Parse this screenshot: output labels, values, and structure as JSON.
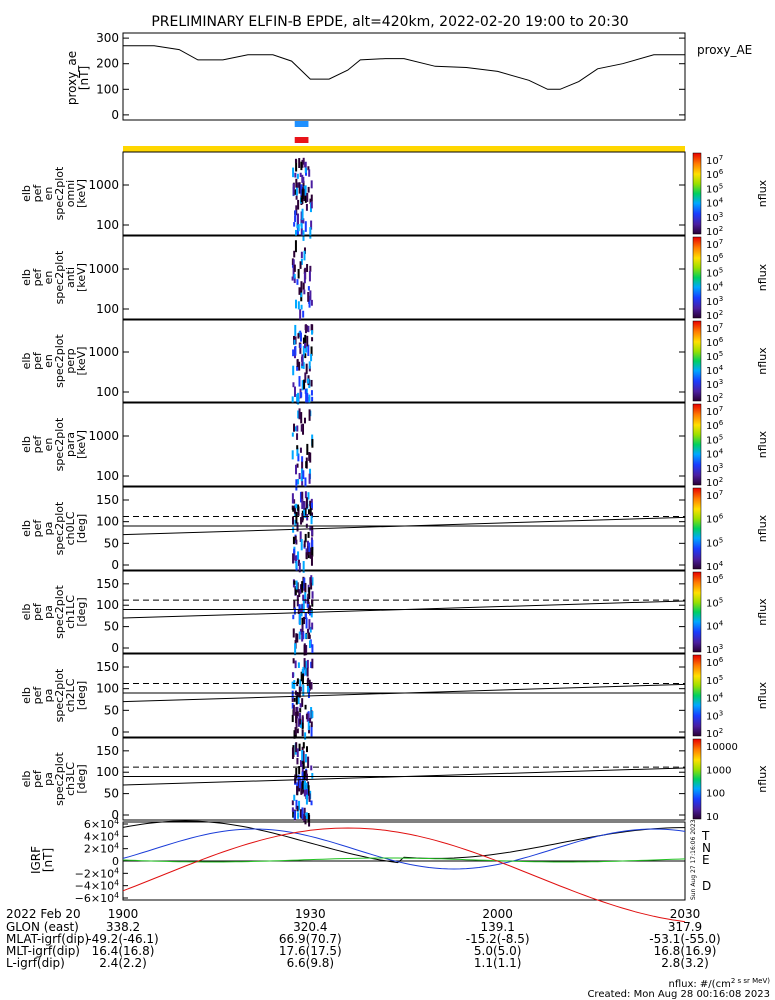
{
  "title": "PRELIMINARY ELFIN-B EPDE, alt=420km, 2022-02-20 19:00 to 20:30",
  "chart_data": [
    {
      "type": "line",
      "panel": "proxy_ae",
      "ylabel": [
        "proxy_ae",
        "[nT]"
      ],
      "right_label": "proxy_AE",
      "yticks": [
        0,
        100,
        200,
        300
      ],
      "ylim": [
        -20,
        320
      ],
      "x_minutes": [
        0,
        5,
        9,
        12,
        16,
        20,
        24,
        27,
        30,
        33,
        36,
        38,
        42,
        45,
        50,
        55,
        60,
        65,
        68,
        70,
        73,
        76,
        80,
        85,
        90
      ],
      "values": [
        270,
        270,
        255,
        215,
        215,
        235,
        235,
        210,
        140,
        140,
        175,
        215,
        220,
        220,
        190,
        185,
        170,
        135,
        100,
        100,
        130,
        180,
        200,
        235,
        235
      ],
      "colors": {
        "line": "#000000"
      }
    },
    {
      "type": "bar",
      "panel": "science-zone-indicators",
      "bars": [
        {
          "name": "blue",
          "x_minutes": [
            27.5,
            29.7
          ],
          "color": "#1e90ff"
        },
        {
          "name": "red",
          "x_minutes": [
            27.5,
            29.7
          ],
          "color": "#e8141a"
        },
        {
          "name": "yellow",
          "x_minutes": [
            0,
            90
          ],
          "color": "#ffd700"
        }
      ]
    },
    {
      "type": "heatmap",
      "panels": [
        {
          "id": "en-omni",
          "ylabel": [
            "elb",
            "pef",
            "en",
            "spec2plot",
            "omni",
            "[keV]"
          ],
          "yticks": [
            "100",
            "1000"
          ],
          "colorbar_ticks": [
            "10^7",
            "10^6",
            "10^5",
            "10^4",
            "10^3",
            "10^2"
          ],
          "colorbar_label": "nflux"
        },
        {
          "id": "en-anti",
          "ylabel": [
            "elb",
            "pef",
            "en",
            "spec2plot",
            "anti",
            "[keV]"
          ],
          "yticks": [
            "100",
            "1000"
          ],
          "colorbar_ticks": [
            "10^7",
            "10^6",
            "10^5",
            "10^4",
            "10^3",
            "10^2"
          ],
          "colorbar_label": "nflux"
        },
        {
          "id": "en-perp",
          "ylabel": [
            "elb",
            "pef",
            "en",
            "spec2plot",
            "perp",
            "[keV]"
          ],
          "yticks": [
            "100",
            "1000"
          ],
          "colorbar_ticks": [
            "10^7",
            "10^6",
            "10^5",
            "10^4",
            "10^3",
            "10^2"
          ],
          "colorbar_label": "nflux"
        },
        {
          "id": "en-para",
          "ylabel": [
            "elb",
            "pef",
            "en",
            "spec2plot",
            "para",
            "[keV]"
          ],
          "yticks": [
            "100",
            "1000"
          ],
          "colorbar_ticks": [
            "10^7",
            "10^6",
            "10^5",
            "10^4",
            "10^3",
            "10^2"
          ],
          "colorbar_label": "nflux"
        },
        {
          "id": "pa-ch0",
          "ylabel": [
            "elb",
            "pef",
            "pa",
            "spec2plot",
            "ch0LC",
            "[deg]"
          ],
          "yticks": [
            "0",
            "50",
            "100",
            "150"
          ],
          "colorbar_ticks": [
            "10^7",
            "10^6",
            "10^5",
            "10^4"
          ],
          "colorbar_label": "nflux"
        },
        {
          "id": "pa-ch1",
          "ylabel": [
            "elb",
            "pef",
            "pa",
            "spec2plot",
            "ch1LC",
            "[deg]"
          ],
          "yticks": [
            "0",
            "50",
            "100",
            "150"
          ],
          "colorbar_ticks": [
            "10^6",
            "10^5",
            "10^4",
            "10^3"
          ],
          "colorbar_label": "nflux"
        },
        {
          "id": "pa-ch2",
          "ylabel": [
            "elb",
            "pef",
            "pa",
            "spec2plot",
            "ch2LC",
            "[deg]"
          ],
          "yticks": [
            "0",
            "50",
            "100",
            "150"
          ],
          "colorbar_ticks": [
            "10^6",
            "10^5",
            "10^4",
            "10^3",
            "10^2"
          ],
          "colorbar_label": "nflux"
        },
        {
          "id": "pa-ch3",
          "ylabel": [
            "elb",
            "pef",
            "pa",
            "spec2plot",
            "ch3LC",
            "[deg]"
          ],
          "yticks": [
            "0",
            "50",
            "100",
            "150"
          ],
          "colorbar_ticks": [
            "10000",
            "1000",
            "100",
            "10"
          ],
          "colorbar_label": "nflux"
        }
      ]
    },
    {
      "type": "line",
      "panel": "igrf",
      "ylabel": [
        "IGRF",
        "[nT]"
      ],
      "yticks": [
        "6×10^4",
        "4×10^4",
        "2×10^4",
        "0",
        "−2×10^4",
        "−4×10^4",
        "−6×10^4"
      ],
      "series": [
        {
          "name": "T",
          "color": "#000000"
        },
        {
          "name": "N",
          "color": "#1a3cd8"
        },
        {
          "name": "E",
          "color": "#22c022"
        },
        {
          "name": "D",
          "color": "#e01010"
        }
      ]
    }
  ],
  "x_axis": {
    "ticks": [
      "1900",
      "1930",
      "2000",
      "2030"
    ]
  },
  "orbit_table": {
    "date": "2022 Feb 20",
    "rows": [
      {
        "label": "GLON (east)",
        "values": [
          "338.2",
          "320.4",
          "139.1",
          "317.9"
        ]
      },
      {
        "label": "MLAT-igrf(dip)",
        "values": [
          "-49.2(-46.1)",
          "66.9(70.7)",
          "-15.2(-8.5)",
          "-53.1(-55.0)"
        ]
      },
      {
        "label": "MLT-igrf(dip)",
        "values": [
          "16.4(16.8)",
          "17.6(17.5)",
          "5.0(5.0)",
          "16.8(16.9)"
        ]
      },
      {
        "label": "L-igrf(dip)",
        "values": [
          "2.4(2.2)",
          "6.6(9.8)",
          "1.1(1.1)",
          "2.8(3.2)"
        ]
      }
    ]
  },
  "footer": {
    "units": "nflux: #/(cm^2 s sr MeV)",
    "created": "Created: Mon Aug 28 00:16:08 2023",
    "side_stamp": "Sun Aug 27 17:16:06 2023"
  }
}
